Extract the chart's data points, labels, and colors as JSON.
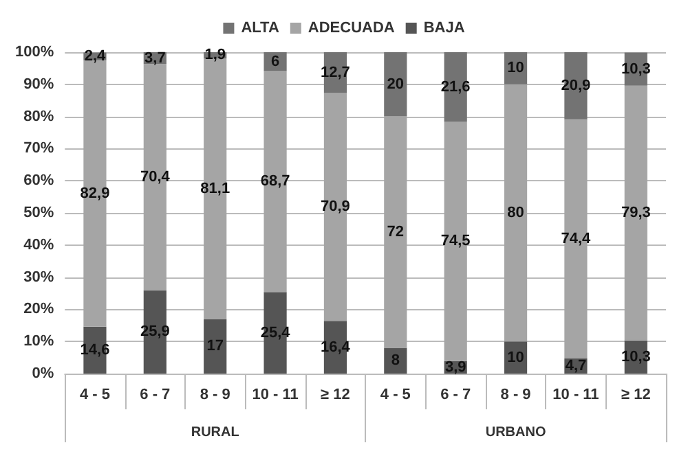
{
  "chart_data": {
    "type": "bar",
    "stacked": true,
    "categories": [
      "4 - 5",
      "6 - 7",
      "8 - 9",
      "10 - 11",
      "≥ 12",
      "4 - 5",
      "6 - 7",
      "8 - 9",
      "10 - 11",
      "≥ 12"
    ],
    "series": [
      {
        "name": "BAJA",
        "color": "#555555",
        "values": [
          14.6,
          25.9,
          17,
          25.4,
          16.4,
          8,
          3.9,
          10,
          4.7,
          10.3
        ],
        "value_labels": [
          "14,6",
          "25,9",
          "17",
          "25,4",
          "16,4",
          "8",
          "3,9",
          "10",
          "4,7",
          "10,3"
        ]
      },
      {
        "name": "ADECUADA",
        "color": "#a5a5a5",
        "values": [
          82.9,
          70.4,
          81.1,
          68.7,
          70.9,
          72,
          74.5,
          80,
          74.4,
          79.3
        ],
        "value_labels": [
          "82,9",
          "70,4",
          "81,1",
          "68,7",
          "70,9",
          "72",
          "74,5",
          "80",
          "74,4",
          "79,3"
        ]
      },
      {
        "name": "ALTA",
        "color": "#737373",
        "values": [
          2.4,
          3.7,
          1.9,
          6,
          12.7,
          20,
          21.6,
          10,
          20.9,
          10.3
        ],
        "value_labels": [
          "2,4",
          "3,7",
          "1,9",
          "6",
          "12,7",
          "20",
          "21,6",
          "10",
          "20,9",
          "10,3"
        ]
      }
    ],
    "ylim": [
      0,
      100
    ],
    "yticks": [
      {
        "value": 0,
        "label": "0%"
      },
      {
        "value": 10,
        "label": "10%"
      },
      {
        "value": 20,
        "label": "20%"
      },
      {
        "value": 30,
        "label": "30%"
      },
      {
        "value": 40,
        "label": "40%"
      },
      {
        "value": 50,
        "label": "50%"
      },
      {
        "value": 60,
        "label": "60%"
      },
      {
        "value": 70,
        "label": "70%"
      },
      {
        "value": 80,
        "label": "80%"
      },
      {
        "value": 90,
        "label": "90%"
      },
      {
        "value": 100,
        "label": "100%"
      }
    ],
    "grid": "y",
    "legend": "top",
    "annotations": [
      "RURAL",
      "URBANO"
    ]
  }
}
